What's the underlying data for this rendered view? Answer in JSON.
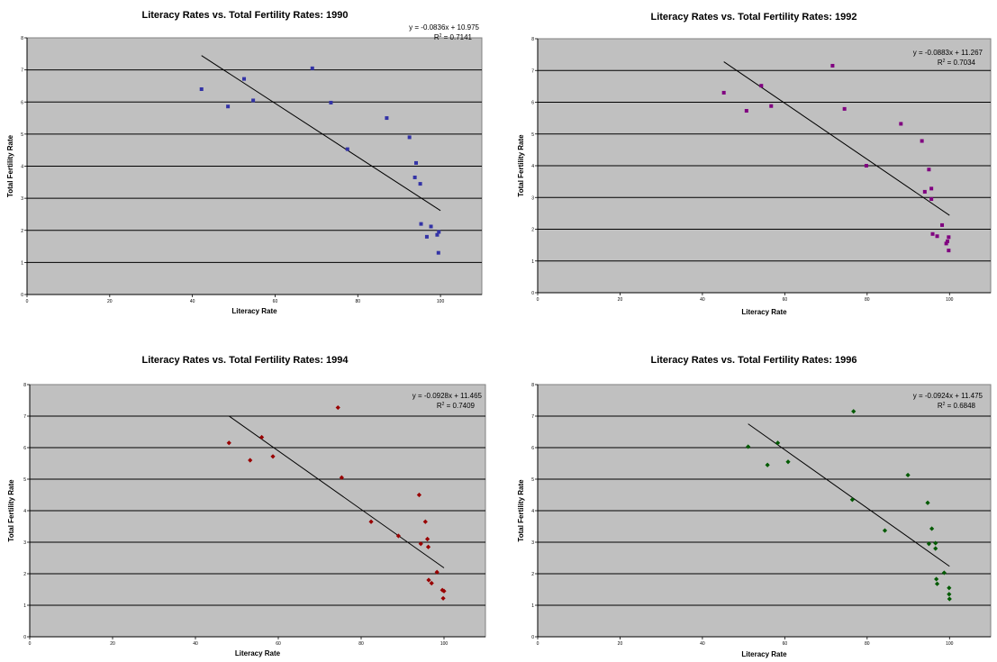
{
  "chart_data": [
    {
      "type": "scatter",
      "title": "Literacy Rates vs. Total Fertility Rates: 1990",
      "xlabel": "Literacy Rate",
      "ylabel": "Total Fertility Rate",
      "xlim": [
        0,
        110
      ],
      "ylim": [
        0,
        8
      ],
      "xticks": [
        "0",
        "20",
        "40",
        "60",
        "80",
        "100"
      ],
      "yticks": [
        "0",
        "1",
        "2",
        "3",
        "4",
        "5",
        "6",
        "7",
        "8"
      ],
      "grid": "horizontal",
      "marker": "square",
      "color": "#3333a6",
      "plot_bg": "#c0c0c0",
      "trendline": {
        "slope": -0.0836,
        "intercept": 10.975,
        "x_range": [
          42.2,
          100
        ]
      },
      "equation": "y = -0.0836x + 10.975",
      "r2_prefix": "R",
      "r2_sup": "2",
      "r2_value": " = 0.7141",
      "points": [
        [
          42.2,
          6.4
        ],
        [
          48.6,
          5.86
        ],
        [
          52.5,
          6.72
        ],
        [
          54.7,
          6.05
        ],
        [
          69.0,
          7.05
        ],
        [
          73.5,
          5.98
        ],
        [
          77.5,
          4.53
        ],
        [
          87.0,
          5.5
        ],
        [
          92.5,
          4.9
        ],
        [
          94.1,
          4.1
        ],
        [
          93.8,
          3.65
        ],
        [
          95.1,
          3.45
        ],
        [
          95.3,
          2.2
        ],
        [
          97.7,
          2.12
        ],
        [
          96.7,
          1.8
        ],
        [
          99.2,
          1.86
        ],
        [
          99.6,
          1.95
        ],
        [
          99.5,
          1.3
        ]
      ]
    },
    {
      "type": "scatter",
      "title": "Literacy Rates vs. Total Fertility Rates: 1992",
      "xlabel": "Literacy Rate",
      "ylabel": "Total Fertility Rate",
      "xlim": [
        0,
        110
      ],
      "ylim": [
        0,
        8
      ],
      "xticks": [
        "0",
        "20",
        "40",
        "60",
        "80",
        "100"
      ],
      "yticks": [
        "0",
        "1",
        "2",
        "3",
        "4",
        "5",
        "6",
        "7",
        "8"
      ],
      "grid": "horizontal",
      "marker": "square",
      "color": "#800080",
      "plot_bg": "#c0c0c0",
      "trendline": {
        "slope": -0.0883,
        "intercept": 11.267,
        "x_range": [
          45.2,
          100
        ]
      },
      "equation": "y = -0.0883x + 11.267",
      "r2_prefix": "R",
      "r2_sup": "2",
      "r2_value": " = 0.7034",
      "points": [
        [
          45.2,
          6.3
        ],
        [
          50.7,
          5.73
        ],
        [
          54.3,
          6.52
        ],
        [
          56.7,
          5.88
        ],
        [
          71.6,
          7.15
        ],
        [
          74.5,
          5.79
        ],
        [
          79.8,
          4.0
        ],
        [
          88.2,
          5.32
        ],
        [
          93.3,
          4.78
        ],
        [
          94.0,
          3.18
        ],
        [
          95.0,
          3.88
        ],
        [
          95.6,
          3.28
        ],
        [
          95.6,
          2.95
        ],
        [
          95.9,
          1.85
        ],
        [
          97.0,
          1.78
        ],
        [
          98.2,
          2.13
        ],
        [
          99.2,
          1.55
        ],
        [
          99.5,
          1.62
        ],
        [
          99.8,
          1.75
        ],
        [
          99.8,
          1.33
        ]
      ]
    },
    {
      "type": "scatter",
      "title": "Literacy Rates vs. Total Fertility Rates: 1994",
      "xlabel": "Literacy Rate",
      "ylabel": "Total Fertility Rate",
      "xlim": [
        0,
        110
      ],
      "ylim": [
        0,
        8
      ],
      "xticks": [
        "0",
        "20",
        "40",
        "60",
        "80",
        "100"
      ],
      "yticks": [
        "0",
        "1",
        "2",
        "3",
        "4",
        "5",
        "6",
        "7",
        "8"
      ],
      "grid": "horizontal",
      "marker": "diamond",
      "color": "#990000",
      "plot_bg": "#c0c0c0",
      "trendline": {
        "slope": -0.0928,
        "intercept": 11.465,
        "x_range": [
          48.1,
          100
        ]
      },
      "equation": "y = -0.0928x + 11.465",
      "r2_prefix": "R",
      "r2_sup": "2",
      "r2_value": " = 0.7409",
      "points": [
        [
          48.1,
          6.15
        ],
        [
          53.2,
          5.6
        ],
        [
          56.0,
          6.33
        ],
        [
          58.7,
          5.72
        ],
        [
          74.4,
          7.27
        ],
        [
          75.3,
          5.05
        ],
        [
          82.4,
          3.65
        ],
        [
          89.0,
          3.2
        ],
        [
          94.0,
          4.5
        ],
        [
          94.4,
          2.95
        ],
        [
          95.5,
          3.65
        ],
        [
          96.0,
          3.1
        ],
        [
          96.2,
          2.85
        ],
        [
          96.3,
          1.8
        ],
        [
          97.0,
          1.7
        ],
        [
          98.3,
          2.05
        ],
        [
          99.6,
          1.48
        ],
        [
          100.0,
          1.45
        ],
        [
          99.8,
          1.22
        ]
      ]
    },
    {
      "type": "scatter",
      "title": "Literacy Rates vs. Total Fertility Rates: 1996",
      "xlabel": "Literacy Rate",
      "ylabel": "Total Fertility Rate",
      "xlim": [
        0,
        110
      ],
      "ylim": [
        0,
        8
      ],
      "xticks": [
        "0",
        "20",
        "40",
        "60",
        "80",
        "100"
      ],
      "yticks": [
        "0",
        "1",
        "2",
        "3",
        "4",
        "5",
        "6",
        "7",
        "8"
      ],
      "grid": "horizontal",
      "marker": "diamond",
      "color": "#005a00",
      "plot_bg": "#c0c0c0",
      "trendline": {
        "slope": -0.0924,
        "intercept": 11.475,
        "x_range": [
          51.1,
          100
        ]
      },
      "equation": "y = -0.0924x + 11.475",
      "r2_prefix": "R",
      "r2_sup": "2",
      "r2_value": " = 0.6848",
      "points": [
        [
          51.1,
          6.03
        ],
        [
          55.8,
          5.45
        ],
        [
          58.3,
          6.15
        ],
        [
          60.8,
          5.55
        ],
        [
          76.7,
          7.15
        ],
        [
          76.4,
          4.35
        ],
        [
          84.3,
          3.37
        ],
        [
          89.9,
          5.13
        ],
        [
          94.7,
          4.25
        ],
        [
          95.7,
          3.43
        ],
        [
          95.0,
          2.95
        ],
        [
          96.6,
          2.97
        ],
        [
          96.6,
          2.8
        ],
        [
          96.8,
          1.83
        ],
        [
          97.0,
          1.68
        ],
        [
          98.7,
          2.03
        ],
        [
          99.9,
          1.55
        ],
        [
          99.9,
          1.35
        ],
        [
          100.0,
          1.2
        ]
      ]
    }
  ]
}
